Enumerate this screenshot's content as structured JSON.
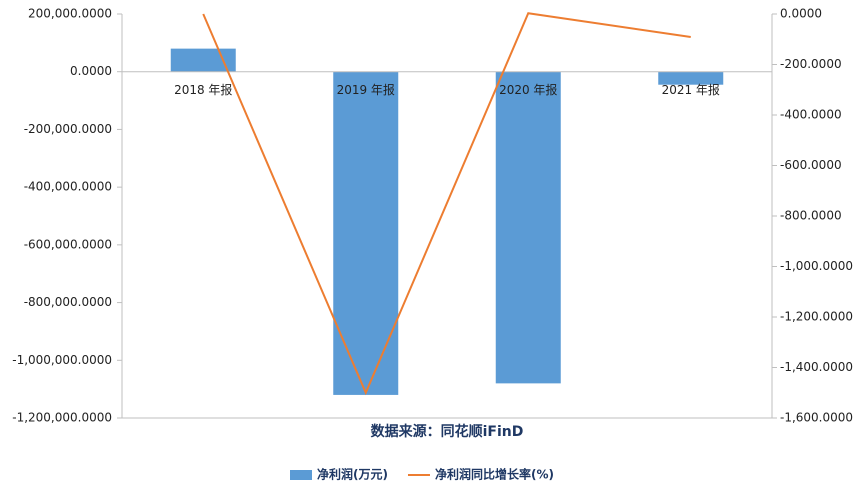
{
  "chart_data": {
    "type": "bar",
    "categories": [
      "2018 年报",
      "2019 年报",
      "2020 年报",
      "2021 年报"
    ],
    "series": [
      {
        "name": "净利润(万元)",
        "color": "#5b9bd5",
        "type": "bar",
        "values": [
          80000,
          -1120000,
          -1080000,
          -45000
        ]
      },
      {
        "name": "净利润同比增长率(%)",
        "color": "#ed7d31",
        "type": "line",
        "axis": "y2",
        "values": [
          0,
          -1500,
          3,
          -91
        ]
      }
    ],
    "ylim": [
      -1200000,
      200000
    ],
    "yticks": [
      {
        "value": 200000,
        "label": "200,000.0000"
      },
      {
        "value": 0,
        "label": "0.0000"
      },
      {
        "value": -200000,
        "label": "-200,000.0000"
      },
      {
        "value": -400000,
        "label": "-400,000.0000"
      },
      {
        "value": -600000,
        "label": "-600,000.0000"
      },
      {
        "value": -800000,
        "label": "-800,000.0000"
      },
      {
        "value": -1000000,
        "label": "-1,000,000.0000"
      },
      {
        "value": -1200000,
        "label": "-1,200,000.0000"
      }
    ],
    "y2lim": [
      -1600,
      0
    ],
    "y2ticks": [
      {
        "value": 0,
        "label": "0.0000"
      },
      {
        "value": -200,
        "label": "-200.0000"
      },
      {
        "value": -400,
        "label": "-400.0000"
      },
      {
        "value": -600,
        "label": "-600.0000"
      },
      {
        "value": -800,
        "label": "-800.0000"
      },
      {
        "value": -1000,
        "label": "-1,000.0000"
      },
      {
        "value": -1200,
        "label": "-1,200.0000"
      },
      {
        "value": -1400,
        "label": "-1,400.0000"
      },
      {
        "value": -1600,
        "label": "-1,600.0000"
      }
    ],
    "source_note": "数据来源：同花顺iFinD",
    "legend": "bottom"
  }
}
